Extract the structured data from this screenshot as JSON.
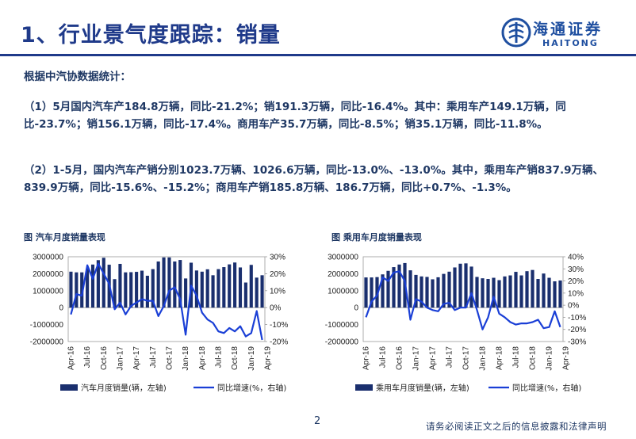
{
  "header": {
    "title": "1、行业景气度跟踪：销量",
    "logo_cn": "海通证券",
    "logo_en": "HAITONG"
  },
  "body": {
    "intro": "根据中汽协数据统计：",
    "para1": "（1）5月国内汽车产184.8万辆，同比-21.2%；销191.3万辆，同比-16.4%。其中：乘用车产149.1万辆，同比-23.7%；销156.1万辆，同比-17.4%。商用车产35.7万辆，同比-8.5%；销35.1万辆，同比-11.8%。",
    "para2": "（2）1-5月，国内汽车产销分别1023.7万辆、1026.6万辆，同比-13.0%、-13.0%。其中，乘用车产销837.9万辆、839.9万辆，同比-15.6%、-15.2%；商用车产销185.8万辆、186.7万辆，同比+0.7%、-1.3%。"
  },
  "footer": {
    "page": "2",
    "disclaimer": "请务必阅读正文之后的信息披露和法律声明"
  },
  "colors": {
    "bar": "#1a2f6e",
    "line": "#1a3fd6",
    "title": "#1f3a8a"
  },
  "chart_data": [
    {
      "type": "bar",
      "title": "图 汽车月度销量表现",
      "x_ticks": [
        "Apr-16",
        "Jul-16",
        "Oct-16",
        "Jan-17",
        "Apr-17",
        "Jul-17",
        "Oct-17",
        "Jan-18",
        "Apr-18",
        "Jul-18",
        "Oct-18",
        "Jan-19",
        "Apr-19"
      ],
      "y_left_ticks": [
        "3000000",
        "2000000",
        "1000000",
        "0",
        "-1000000",
        "-2000000"
      ],
      "y_left_range": [
        -2000000,
        3000000
      ],
      "y_right_ticks": [
        "30%",
        "20%",
        "10%",
        "0%",
        "-10%",
        "-20%"
      ],
      "y_right_range": [
        -20,
        30
      ],
      "series": [
        {
          "name": "汽车月度销量(辆，左轴)",
          "axis": "left",
          "kind": "bar",
          "values": [
            2120000,
            2080000,
            2080000,
            2290000,
            2540000,
            2800000,
            2940000,
            2530000,
            1680000,
            2580000,
            2080000,
            2090000,
            2110000,
            2180000,
            1880000,
            2270000,
            2720000,
            2960000,
            2960000,
            2720000,
            2810000,
            1720000,
            2650000,
            2190000,
            2120000,
            2260000,
            1910000,
            2270000,
            2390000,
            2550000,
            2660000,
            2370000,
            1480000,
            2520000,
            1770000,
            1910000
          ]
        },
        {
          "name": "同比增速(%，右轴)",
          "axis": "right",
          "kind": "line",
          "values": [
            -4,
            8,
            7,
            25,
            17,
            26,
            20,
            14,
            -1,
            3,
            -4,
            1,
            3,
            5,
            4,
            4,
            -5,
            1,
            10,
            12,
            5,
            -16,
            13,
            7,
            -3,
            -7,
            -9,
            -14,
            -15,
            -12,
            -14,
            -11,
            -17,
            -15,
            -2,
            -19
          ]
        }
      ],
      "legend": [
        "汽车月度销量(辆，左轴)",
        "同比增速(%，右轴)"
      ]
    },
    {
      "type": "bar",
      "title": "图 乘用车月度销量表现",
      "x_ticks": [
        "Apr-16",
        "Jul-16",
        "Oct-16",
        "Jan-17",
        "Apr-17",
        "Jul-17",
        "Oct-17",
        "Jan-18",
        "Apr-18",
        "Jul-18",
        "Oct-18",
        "Jan-19",
        "Apr-19"
      ],
      "y_left_ticks": [
        "3000000",
        "2000000",
        "1000000",
        "0",
        "-1000000",
        "-2000000"
      ],
      "y_left_range": [
        -2000000,
        3000000
      ],
      "y_right_ticks": [
        "40%",
        "30%",
        "20%",
        "10%",
        "0%",
        "-10%",
        "-20%",
        "-30%"
      ],
      "y_right_range": [
        -30,
        40
      ],
      "series": [
        {
          "name": "乘用车月度销量(辆，左轴)",
          "axis": "left",
          "kind": "bar",
          "values": [
            1780000,
            1780000,
            1800000,
            1960000,
            2170000,
            2390000,
            2540000,
            2630000,
            2200000,
            1930000,
            1840000,
            1810000,
            1670000,
            1790000,
            1990000,
            2120000,
            2370000,
            2590000,
            2610000,
            2420000,
            1810000,
            1730000,
            1690000,
            1760000,
            1620000,
            1840000,
            1900000,
            2110000,
            1900000,
            2150000,
            2220000,
            1690000,
            2010000,
            1760000,
            1550000,
            1600000
          ]
        },
        {
          "name": "同比增速(%，右轴)",
          "axis": "right",
          "kind": "line",
          "values": [
            -10,
            3,
            8,
            23,
            20,
            27,
            28,
            20,
            -12,
            5,
            3,
            -2,
            -4,
            -5,
            1,
            2,
            -4,
            -2,
            -2,
            10,
            -4,
            -20,
            -10,
            7,
            -7,
            -10,
            -14,
            -16,
            -15,
            -15,
            -14,
            -12,
            -19,
            -18,
            -5,
            -18
          ]
        }
      ],
      "legend": [
        "乘用车月度销量(辆，左轴)",
        "同比增速(%，右轴)"
      ]
    }
  ]
}
